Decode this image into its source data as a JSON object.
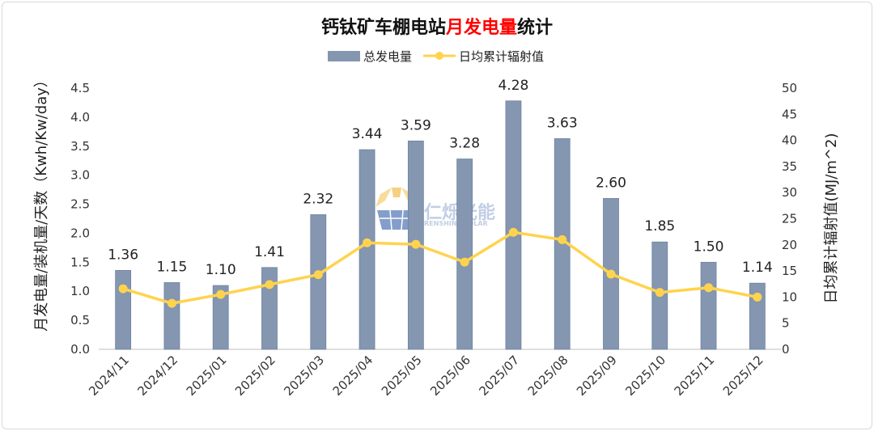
{
  "chart_data": {
    "type": "bar+line",
    "title_part1": "钙钛矿车棚电站",
    "title_part2": "月发电量",
    "title_part3": "统计",
    "title_highlight_color": "#ff0000",
    "categories": [
      "2024/11",
      "2024/12",
      "2025/01",
      "2025/02",
      "2025/03",
      "2025/04",
      "2025/05",
      "2025/06",
      "2025/07",
      "2025/08",
      "2025/09",
      "2025/10",
      "2025/11",
      "2025/12"
    ],
    "series": [
      {
        "name": "总发电量",
        "type": "bar",
        "axis": "left",
        "color": "#8496b0",
        "values": [
          1.36,
          1.15,
          1.1,
          1.41,
          2.32,
          3.44,
          3.59,
          3.28,
          4.28,
          3.63,
          2.6,
          1.85,
          1.5,
          1.14
        ],
        "labels": [
          "1.36",
          "1.15",
          "1.10",
          "1.41",
          "2.32",
          "3.44",
          "3.59",
          "3.28",
          "4.28",
          "3.63",
          "2.60",
          "1.85",
          "1.50",
          "1.14"
        ]
      },
      {
        "name": "日均累计辐射值",
        "type": "line",
        "axis": "right",
        "color": "#ffd34e",
        "values": [
          11.6,
          8.8,
          10.5,
          12.4,
          14.3,
          20.4,
          20.1,
          16.7,
          22.4,
          21.0,
          14.4,
          10.9,
          11.8,
          10.0
        ]
      }
    ],
    "ylabel_left": "月发电量/装机量/天数（Kwh/Kw/day）",
    "ylabel_right": "日均累计辐射值(MJ/m^2)",
    "ylim_left": [
      0,
      4.5
    ],
    "ylim_right": [
      0,
      50
    ],
    "yticks_left": [
      "0.0",
      "0.5",
      "1.0",
      "1.5",
      "2.0",
      "2.5",
      "3.0",
      "3.5",
      "4.0",
      "4.5"
    ],
    "yticks_right": [
      "0",
      "5",
      "10",
      "15",
      "20",
      "25",
      "30",
      "35",
      "40",
      "45",
      "50"
    ],
    "legend_position": "top-center",
    "grid": false
  },
  "watermark": {
    "brand_cn": "仁烁光能",
    "brand_en": "RENSHINE SOLAR"
  }
}
